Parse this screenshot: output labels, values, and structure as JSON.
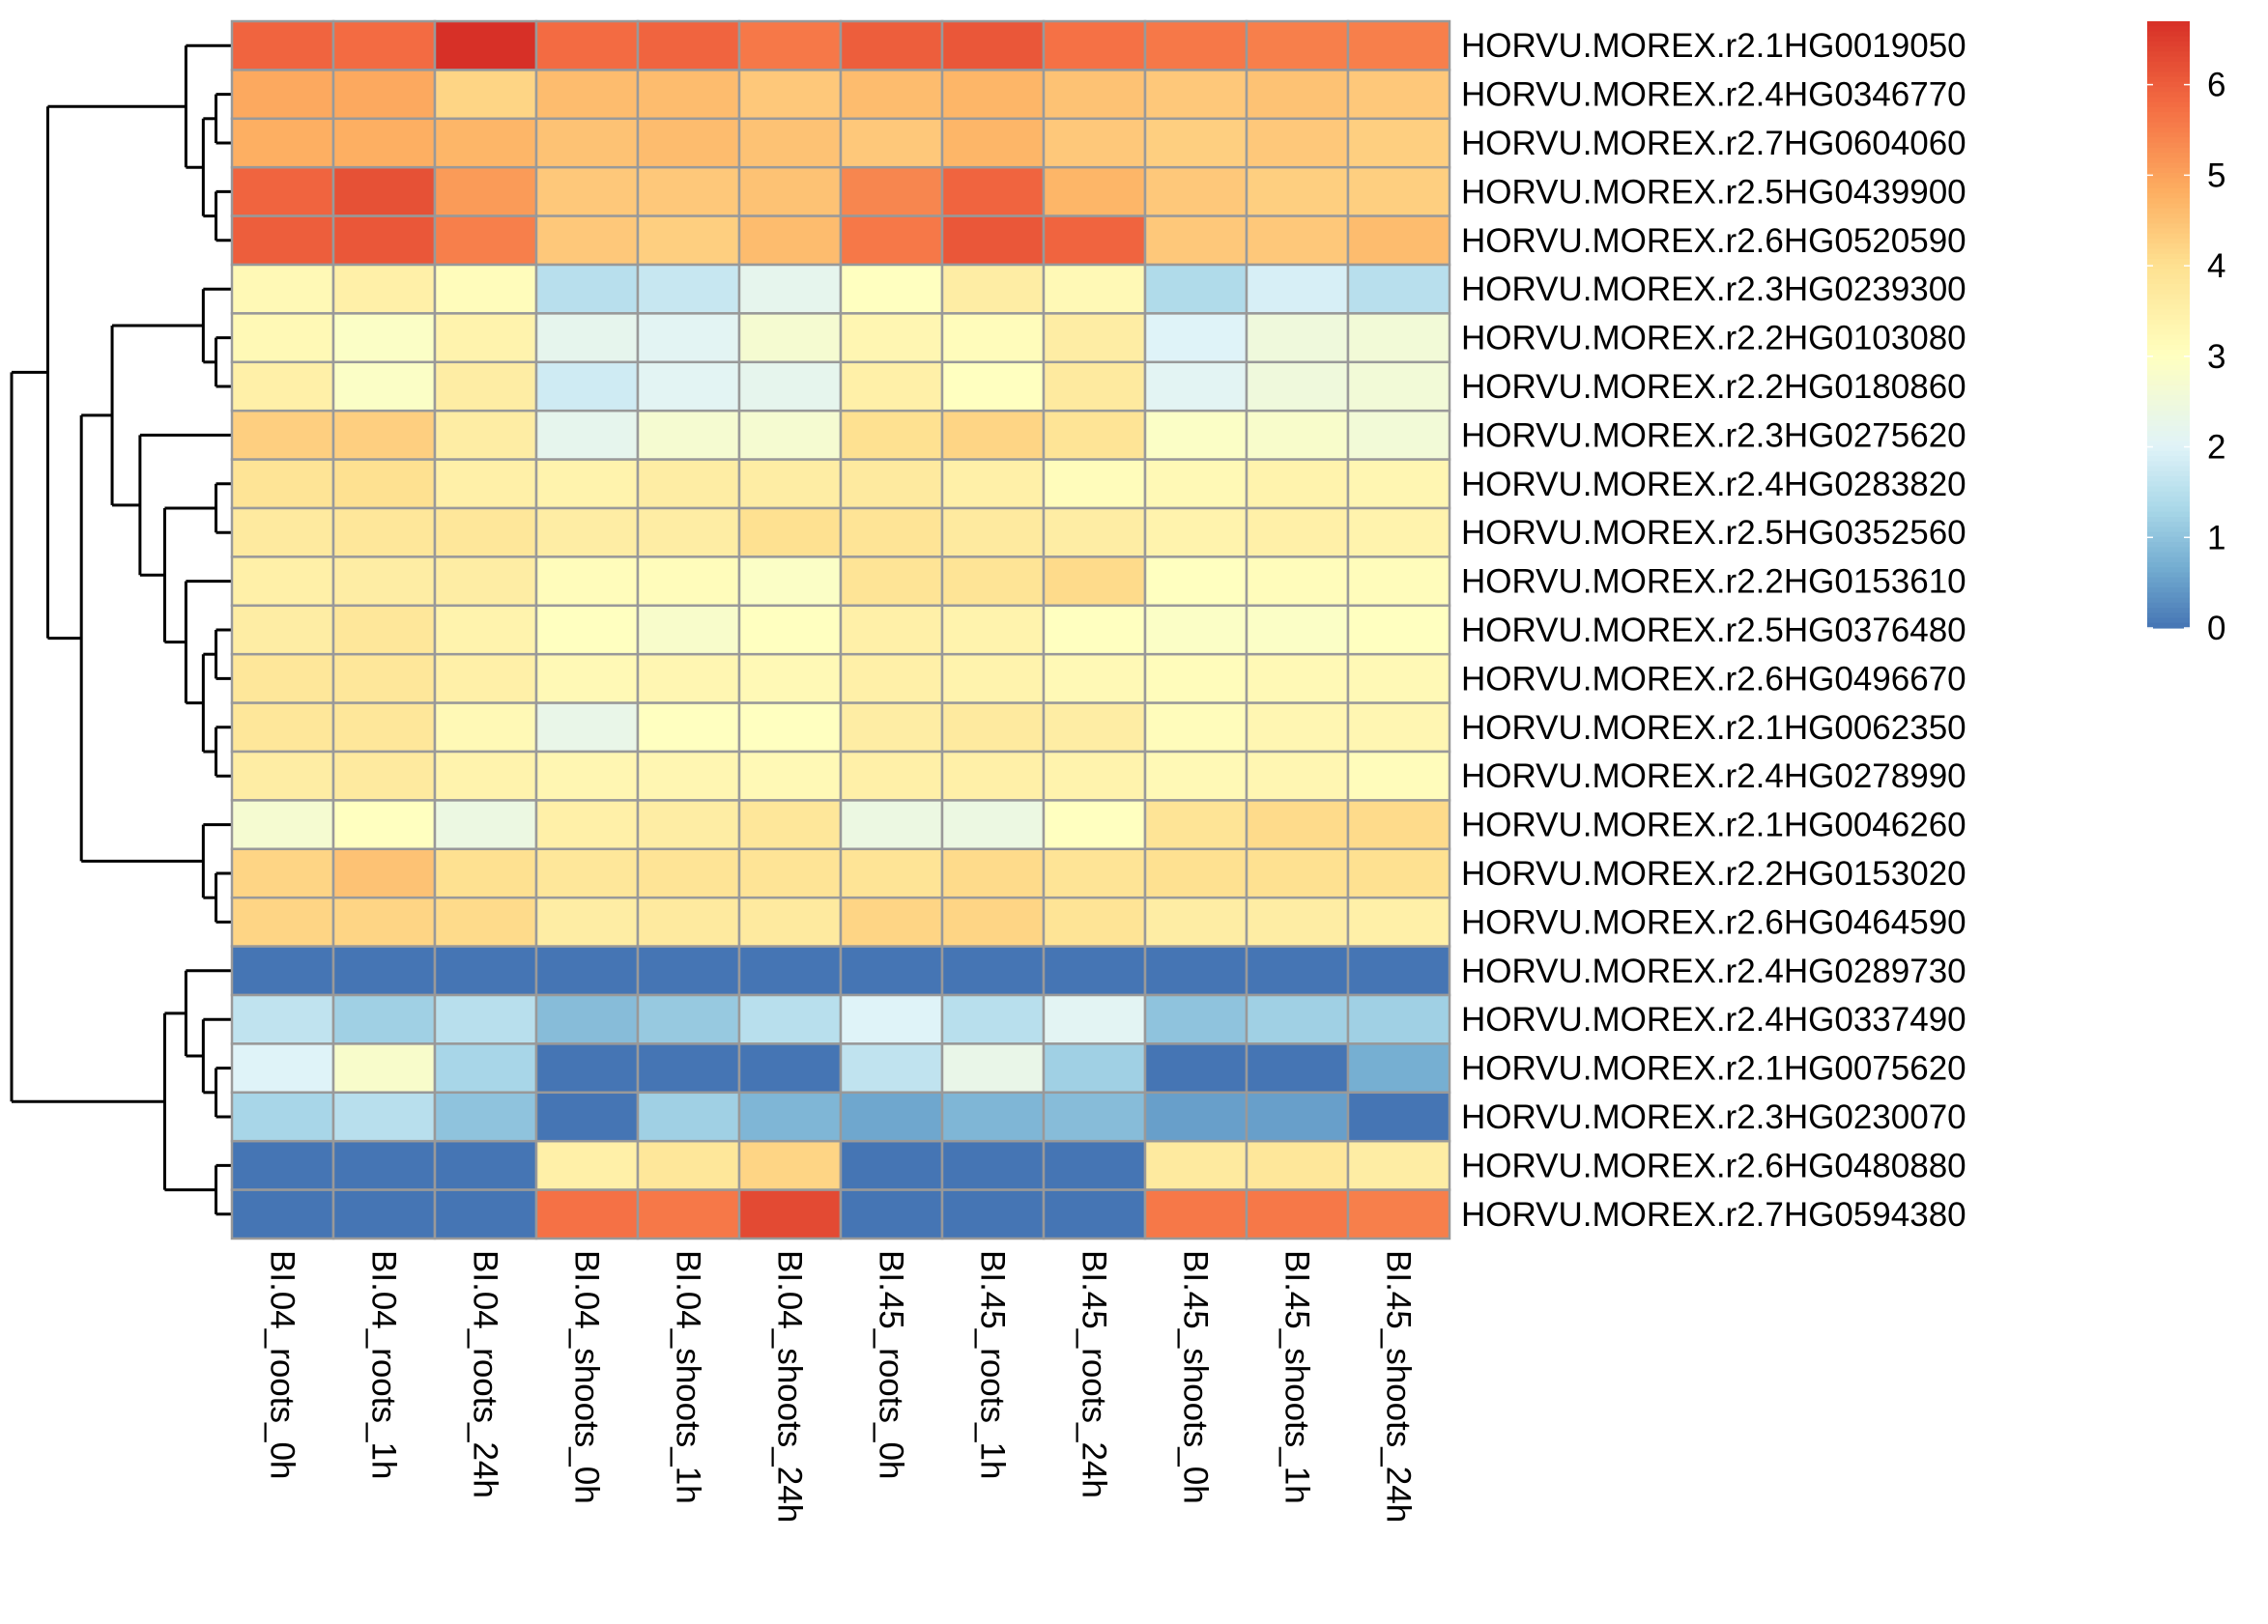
{
  "chart_data": {
    "type": "heatmap",
    "title": "",
    "xlabel": "",
    "ylabel": "",
    "columns": [
      "BI.04_roots_0h",
      "BI.04_roots_1h",
      "BI.04_roots_24h",
      "BI.04_shoots_0h",
      "BI.04_shoots_1h",
      "BI.04_shoots_24h",
      "BI.45_roots_0h",
      "BI.45_roots_1h",
      "BI.45_roots_24h",
      "BI.45_shoots_0h",
      "BI.45_shoots_1h",
      "BI.45_shoots_24h"
    ],
    "rows": [
      "HORVU.MOREX.r2.1HG0019050",
      "HORVU.MOREX.r2.4HG0346770",
      "HORVU.MOREX.r2.7HG0604060",
      "HORVU.MOREX.r2.5HG0439900",
      "HORVU.MOREX.r2.6HG0520590",
      "HORVU.MOREX.r2.3HG0239300",
      "HORVU.MOREX.r2.2HG0103080",
      "HORVU.MOREX.r2.2HG0180860",
      "HORVU.MOREX.r2.3HG0275620",
      "HORVU.MOREX.r2.4HG0283820",
      "HORVU.MOREX.r2.5HG0352560",
      "HORVU.MOREX.r2.2HG0153610",
      "HORVU.MOREX.r2.5HG0376480",
      "HORVU.MOREX.r2.6HG0496670",
      "HORVU.MOREX.r2.1HG0062350",
      "HORVU.MOREX.r2.4HG0278990",
      "HORVU.MOREX.r2.1HG0046260",
      "HORVU.MOREX.r2.2HG0153020",
      "HORVU.MOREX.r2.6HG0464590",
      "HORVU.MOREX.r2.4HG0289730",
      "HORVU.MOREX.r2.4HG0337490",
      "HORVU.MOREX.r2.1HG0075620",
      "HORVU.MOREX.r2.3HG0230070",
      "HORVU.MOREX.r2.6HG0480880",
      "HORVU.MOREX.r2.7HG0594380"
    ],
    "values": [
      [
        5.9,
        5.8,
        6.7,
        5.8,
        5.9,
        5.6,
        6.0,
        6.1,
        5.7,
        5.6,
        5.5,
        5.5
      ],
      [
        4.9,
        4.9,
        4.2,
        4.6,
        4.6,
        4.4,
        4.6,
        4.7,
        4.5,
        4.4,
        4.5,
        4.4
      ],
      [
        4.8,
        4.8,
        4.7,
        4.5,
        4.6,
        4.5,
        4.4,
        4.7,
        4.4,
        4.3,
        4.4,
        4.3
      ],
      [
        5.9,
        6.2,
        5.1,
        4.4,
        4.4,
        4.5,
        5.4,
        5.9,
        4.7,
        4.4,
        4.3,
        4.3
      ],
      [
        6.0,
        6.1,
        5.5,
        4.4,
        4.3,
        4.6,
        5.6,
        6.1,
        5.9,
        4.4,
        4.4,
        4.6
      ],
      [
        3.2,
        3.5,
        3.1,
        1.5,
        1.7,
        2.2,
        3.0,
        3.6,
        3.2,
        1.4,
        1.9,
        1.5
      ],
      [
        3.2,
        2.9,
        3.4,
        2.2,
        2.1,
        2.7,
        3.3,
        3.1,
        3.6,
        2.0,
        2.5,
        2.6
      ],
      [
        3.5,
        2.9,
        3.6,
        1.8,
        2.1,
        2.2,
        3.5,
        3.0,
        3.7,
        2.1,
        2.5,
        2.6
      ],
      [
        4.3,
        4.3,
        3.6,
        2.2,
        2.7,
        2.7,
        4.0,
        4.2,
        3.9,
        2.9,
        2.8,
        2.6
      ],
      [
        3.9,
        4.0,
        3.5,
        3.4,
        3.6,
        3.6,
        3.7,
        3.5,
        3.1,
        3.2,
        3.4,
        3.3
      ],
      [
        3.7,
        3.8,
        3.8,
        3.6,
        3.6,
        4.0,
        3.9,
        3.7,
        3.6,
        3.4,
        3.5,
        3.4
      ],
      [
        3.5,
        3.6,
        3.6,
        3.1,
        3.1,
        2.9,
        3.9,
        3.9,
        4.1,
        3.0,
        3.1,
        3.1
      ],
      [
        3.6,
        3.8,
        3.4,
        3.0,
        2.8,
        3.0,
        3.5,
        3.4,
        3.0,
        2.9,
        2.9,
        3.0
      ],
      [
        3.8,
        3.8,
        3.5,
        3.2,
        3.3,
        3.2,
        3.5,
        3.4,
        3.2,
        3.1,
        3.2,
        3.2
      ],
      [
        3.8,
        3.8,
        3.2,
        2.3,
        3.0,
        3.0,
        3.6,
        3.7,
        3.6,
        3.1,
        3.3,
        3.3
      ],
      [
        3.6,
        3.7,
        3.4,
        3.3,
        3.3,
        3.2,
        3.5,
        3.5,
        3.4,
        3.2,
        3.3,
        3.1
      ],
      [
        2.7,
        3.0,
        2.4,
        3.5,
        3.6,
        3.8,
        2.4,
        2.4,
        3.0,
        3.9,
        4.1,
        4.1
      ],
      [
        4.2,
        4.5,
        4.0,
        3.8,
        3.9,
        3.9,
        3.9,
        4.1,
        3.9,
        4.0,
        4.0,
        4.0
      ],
      [
        4.2,
        4.2,
        4.1,
        3.6,
        3.7,
        3.7,
        4.2,
        4.2,
        3.9,
        3.6,
        3.6,
        3.5
      ],
      [
        0.0,
        0.0,
        0.0,
        0.0,
        0.0,
        0.0,
        0.0,
        0.0,
        0.0,
        0.0,
        0.0,
        0.0
      ],
      [
        1.6,
        1.2,
        1.5,
        0.9,
        1.1,
        1.5,
        2.0,
        1.5,
        2.1,
        1.0,
        1.2,
        1.2
      ],
      [
        2.0,
        2.8,
        1.3,
        0.0,
        0.0,
        0.0,
        1.6,
        2.3,
        1.2,
        0.0,
        0.0,
        0.7
      ],
      [
        1.3,
        1.5,
        1.0,
        0.0,
        1.2,
        0.8,
        0.6,
        0.8,
        0.9,
        0.5,
        0.5,
        0.0
      ],
      [
        0.0,
        0.0,
        0.0,
        3.5,
        3.8,
        4.2,
        0.0,
        0.0,
        0.0,
        3.7,
        3.8,
        3.6
      ],
      [
        0.0,
        0.0,
        0.0,
        5.7,
        5.6,
        6.3,
        0.0,
        0.0,
        0.0,
        5.6,
        5.6,
        5.5
      ]
    ],
    "color_range": [
      0,
      6.7
    ],
    "colorbar_ticks": [
      0,
      1,
      2,
      3,
      4,
      5,
      6
    ],
    "colors": {
      "low": "#4575b4",
      "mid": "#ffffbf",
      "high": "#d73027",
      "cell_border": "#999999"
    },
    "row_dendrogram": true,
    "legend_position": "top-right"
  }
}
